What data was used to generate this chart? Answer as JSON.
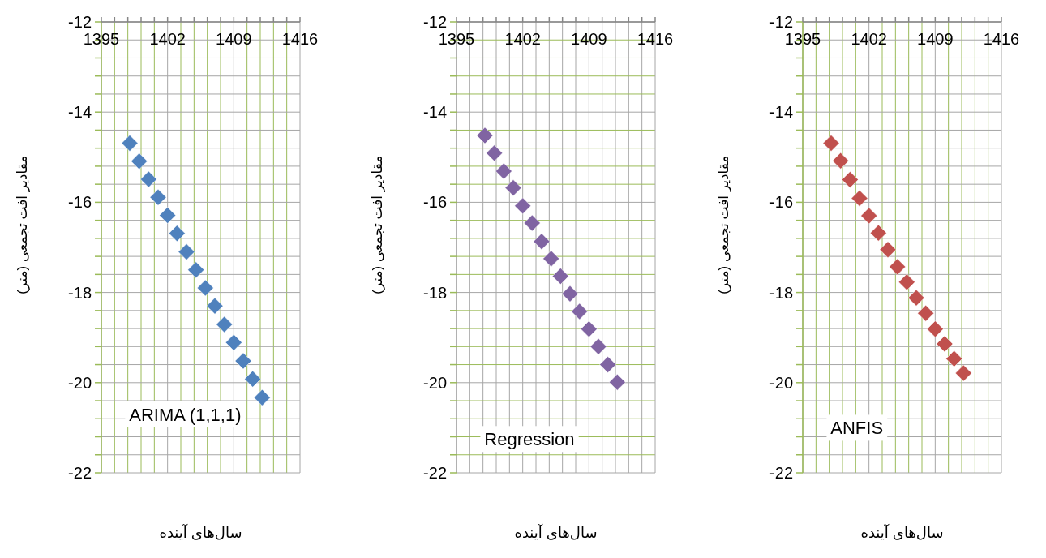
{
  "chart_data": [
    {
      "type": "scatter",
      "xlabel": "سال‌های آینده",
      "ylabel": "مقادیر افت تجمعی (متر)",
      "x": [
        1398,
        1399,
        1400,
        1401,
        1402,
        1403,
        1404,
        1405,
        1406,
        1407,
        1408,
        1409,
        1410,
        1411,
        1412
      ],
      "xlim": [
        1395,
        1416
      ],
      "xticks": [
        1395,
        {
          "value": 1396.4,
          "label": null
        },
        {
          "value": 1397.8,
          "label": null
        },
        {
          "value": 1399.2,
          "label": null
        },
        {
          "value": 1400.6,
          "label": null
        },
        1402,
        {
          "value": 1403.4,
          "label": null
        },
        {
          "value": 1404.8,
          "label": null
        },
        {
          "value": 1406.2,
          "label": null
        },
        {
          "value": 1407.6,
          "label": null
        },
        1409,
        {
          "value": 1410.4,
          "label": null
        },
        {
          "value": 1411.8,
          "label": null
        },
        {
          "value": 1413.2,
          "label": null
        },
        {
          "value": 1414.6,
          "label": null
        },
        1416
      ],
      "ylim": [
        -22,
        -12
      ],
      "yticks": [
        -22,
        {
          "value": -21.6,
          "label": null
        },
        {
          "value": -21.2,
          "label": null
        },
        {
          "value": -20.8,
          "label": null
        },
        {
          "value": -20.4,
          "label": null
        },
        -20,
        {
          "value": -19.6,
          "label": null
        },
        {
          "value": -19.2,
          "label": null
        },
        {
          "value": -18.8,
          "label": null
        },
        {
          "value": -18.4,
          "label": null
        },
        -18,
        {
          "value": -17.6,
          "label": null
        },
        {
          "value": -17.2,
          "label": null
        },
        {
          "value": -16.8,
          "label": null
        },
        {
          "value": -16.4,
          "label": null
        },
        -16,
        {
          "value": -15.6,
          "label": null
        },
        {
          "value": -15.2,
          "label": null
        },
        {
          "value": -14.8,
          "label": null
        },
        {
          "value": -14.4,
          "label": null
        },
        -14,
        {
          "value": -13.6,
          "label": null
        },
        {
          "value": -13.2,
          "label": null
        },
        {
          "value": -12.8,
          "label": null
        },
        {
          "value": -12.4,
          "label": null
        },
        -12
      ],
      "grid": true,
      "marker": "diamond",
      "series": [
        {
          "name": "ARIMA (1,1,1)",
          "color": "#4f81bd",
          "values": [
            -14.69,
            -15.09,
            -15.49,
            -15.89,
            -16.29,
            -16.69,
            -17.1,
            -17.5,
            -17.9,
            -18.3,
            -18.71,
            -19.11,
            -19.52,
            -19.92,
            -20.33
          ]
        }
      ]
    },
    {
      "type": "scatter",
      "xlabel": "سال‌های آینده",
      "ylabel": "مقادیر افت تجمعی (متر)",
      "x": [
        1398,
        1399,
        1400,
        1401,
        1402,
        1403,
        1404,
        1405,
        1406,
        1407,
        1408,
        1409,
        1410,
        1411,
        1412
      ],
      "xlim": [
        1395,
        1416
      ],
      "xticks": [
        1395,
        {
          "value": 1396.4,
          "label": null
        },
        {
          "value": 1397.8,
          "label": null
        },
        {
          "value": 1399.2,
          "label": null
        },
        {
          "value": 1400.6,
          "label": null
        },
        1402,
        {
          "value": 1403.4,
          "label": null
        },
        {
          "value": 1404.8,
          "label": null
        },
        {
          "value": 1406.2,
          "label": null
        },
        {
          "value": 1407.6,
          "label": null
        },
        1409,
        {
          "value": 1410.4,
          "label": null
        },
        {
          "value": 1411.8,
          "label": null
        },
        {
          "value": 1413.2,
          "label": null
        },
        {
          "value": 1414.6,
          "label": null
        },
        1416
      ],
      "ylim": [
        -22,
        -12
      ],
      "yticks": [
        -22,
        {
          "value": -21.6,
          "label": null
        },
        {
          "value": -21.2,
          "label": null
        },
        {
          "value": -20.8,
          "label": null
        },
        {
          "value": -20.4,
          "label": null
        },
        -20,
        {
          "value": -19.6,
          "label": null
        },
        {
          "value": -19.2,
          "label": null
        },
        {
          "value": -18.8,
          "label": null
        },
        {
          "value": -18.4,
          "label": null
        },
        -18,
        {
          "value": -17.6,
          "label": null
        },
        {
          "value": -17.2,
          "label": null
        },
        {
          "value": -16.8,
          "label": null
        },
        {
          "value": -16.4,
          "label": null
        },
        -16,
        {
          "value": -15.6,
          "label": null
        },
        {
          "value": -15.2,
          "label": null
        },
        {
          "value": -14.8,
          "label": null
        },
        {
          "value": -14.4,
          "label": null
        },
        -14,
        {
          "value": -13.6,
          "label": null
        },
        {
          "value": -13.2,
          "label": null
        },
        {
          "value": -12.8,
          "label": null
        },
        {
          "value": -12.4,
          "label": null
        },
        -12
      ],
      "grid": true,
      "marker": "diamond",
      "series": [
        {
          "name": "Regression",
          "color": "#8064a2",
          "values": [
            -14.52,
            -14.91,
            -15.31,
            -15.68,
            -16.08,
            -16.46,
            -16.87,
            -17.25,
            -17.64,
            -18.03,
            -18.42,
            -18.81,
            -19.2,
            -19.6,
            -19.99
          ]
        }
      ]
    },
    {
      "type": "scatter",
      "xlabel": "سال‌های آینده",
      "ylabel": "مقادیر افت تجمعی (متر)",
      "x": [
        1398,
        1399,
        1400,
        1401,
        1402,
        1403,
        1404,
        1405,
        1406,
        1407,
        1408,
        1409,
        1410,
        1411,
        1412
      ],
      "xlim": [
        1395,
        1416
      ],
      "xticks": [
        1395,
        {
          "value": 1396.4,
          "label": null
        },
        {
          "value": 1397.8,
          "label": null
        },
        {
          "value": 1399.2,
          "label": null
        },
        {
          "value": 1400.6,
          "label": null
        },
        1402,
        {
          "value": 1403.4,
          "label": null
        },
        {
          "value": 1404.8,
          "label": null
        },
        {
          "value": 1406.2,
          "label": null
        },
        {
          "value": 1407.6,
          "label": null
        },
        1409,
        {
          "value": 1410.4,
          "label": null
        },
        {
          "value": 1411.8,
          "label": null
        },
        {
          "value": 1413.2,
          "label": null
        },
        {
          "value": 1414.6,
          "label": null
        },
        1416
      ],
      "ylim": [
        -22,
        -12
      ],
      "yticks": [
        -22,
        {
          "value": -21.6,
          "label": null
        },
        {
          "value": -21.2,
          "label": null
        },
        {
          "value": -20.8,
          "label": null
        },
        {
          "value": -20.4,
          "label": null
        },
        -20,
        {
          "value": -19.6,
          "label": null
        },
        {
          "value": -19.2,
          "label": null
        },
        {
          "value": -18.8,
          "label": null
        },
        {
          "value": -18.4,
          "label": null
        },
        -18,
        {
          "value": -17.6,
          "label": null
        },
        {
          "value": -17.2,
          "label": null
        },
        {
          "value": -16.8,
          "label": null
        },
        {
          "value": -16.4,
          "label": null
        },
        -16,
        {
          "value": -15.6,
          "label": null
        },
        {
          "value": -15.2,
          "label": null
        },
        {
          "value": -14.8,
          "label": null
        },
        {
          "value": -14.4,
          "label": null
        },
        -14,
        {
          "value": -13.6,
          "label": null
        },
        {
          "value": -13.2,
          "label": null
        },
        {
          "value": -12.8,
          "label": null
        },
        {
          "value": -12.4,
          "label": null
        },
        -12
      ],
      "grid": true,
      "marker": "diamond",
      "series": [
        {
          "name": "ANFIS",
          "color": "#c0504d",
          "values": [
            -14.69,
            -15.08,
            -15.5,
            -15.91,
            -16.3,
            -16.68,
            -17.05,
            -17.43,
            -17.77,
            -18.12,
            -18.46,
            -18.81,
            -19.14,
            -19.47,
            -19.79
          ]
        }
      ]
    }
  ]
}
